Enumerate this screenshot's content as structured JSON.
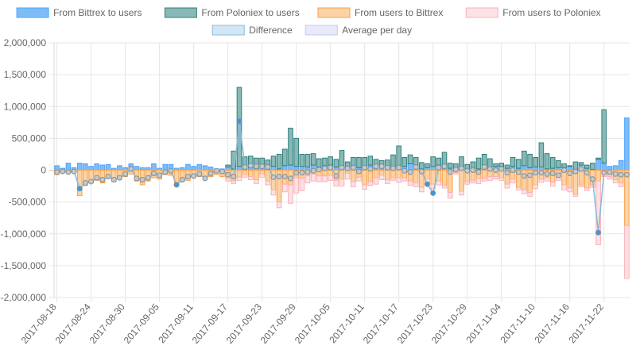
{
  "chart_data": {
    "type": "bar",
    "title": "",
    "xlabel": "",
    "ylabel": "",
    "ylim": [
      -2000000,
      2000000
    ],
    "y_ticks": [
      2000000,
      1500000,
      1000000,
      500000,
      0,
      -500000,
      -1000000,
      -1500000,
      -2000000
    ],
    "y_tick_labels": [
      "2,000,000",
      "1,500,000",
      "1,000,000",
      "500,000",
      "0",
      "-500,000",
      "-1,000,000",
      "-1,500,000",
      "-2,000,000"
    ],
    "x_tick_labels": [
      "2017-08-18",
      "2017-08-24",
      "2017-08-30",
      "2017-09-05",
      "2017-09-11",
      "2017-09-17",
      "2017-09-23",
      "2017-09-29",
      "2017-10-05",
      "2017-10-11",
      "2017-10-17",
      "2017-10-23",
      "2017-10-29",
      "2017-11-04",
      "2017-11-10",
      "2017-11-16",
      "2017-11-22"
    ],
    "x_tick_every": 6,
    "start_date": "2017-08-18",
    "legend": {
      "position": "top",
      "rows": [
        [
          0,
          1,
          2,
          3
        ],
        [
          4,
          5
        ]
      ]
    },
    "series": [
      {
        "name": "From Bittrex to users",
        "kind": "bar",
        "stack": "out",
        "color": "#4da3ff",
        "fill": "#7ebcf7",
        "values": [
          70000,
          30000,
          110000,
          40000,
          110000,
          100000,
          60000,
          100000,
          80000,
          90000,
          30000,
          70000,
          40000,
          100000,
          60000,
          40000,
          40000,
          100000,
          30000,
          90000,
          90000,
          30000,
          40000,
          90000,
          60000,
          90000,
          70000,
          50000,
          20000,
          20000,
          50000,
          20000,
          60000,
          20000,
          40000,
          30000,
          50000,
          20000,
          60000,
          20000,
          70000,
          80000,
          60000,
          60000,
          50000,
          80000,
          50000,
          70000,
          80000,
          50000,
          30000,
          40000,
          60000,
          40000,
          60000,
          80000,
          60000,
          50000,
          30000,
          50000,
          40000,
          60000,
          100000,
          70000,
          20000,
          40000,
          60000,
          80000,
          30000,
          30000,
          30000,
          40000,
          10000,
          30000,
          20000,
          80000,
          30000,
          60000,
          60000,
          30000,
          60000,
          30000,
          70000,
          40000,
          50000,
          50000,
          20000,
          30000,
          40000,
          40000,
          60000,
          10000,
          80000,
          30000,
          10000,
          170000,
          110000,
          60000,
          70000,
          150000,
          820000
        ]
      },
      {
        "name": "From Poloniex to users",
        "kind": "bar",
        "stack": "out",
        "color": "#2f7f7a",
        "fill": "#88b9b7",
        "values": [
          0,
          0,
          0,
          0,
          0,
          0,
          0,
          0,
          0,
          0,
          0,
          0,
          0,
          0,
          0,
          0,
          0,
          0,
          0,
          0,
          0,
          0,
          0,
          0,
          0,
          0,
          0,
          0,
          0,
          0,
          30000,
          280000,
          1240000,
          190000,
          180000,
          160000,
          140000,
          140000,
          160000,
          230000,
          260000,
          580000,
          440000,
          190000,
          200000,
          180000,
          130000,
          120000,
          130000,
          120000,
          280000,
          90000,
          140000,
          160000,
          140000,
          140000,
          110000,
          100000,
          130000,
          190000,
          340000,
          140000,
          140000,
          130000,
          100000,
          60000,
          150000,
          110000,
          250000,
          80000,
          70000,
          170000,
          80000,
          100000,
          170000,
          170000,
          150000,
          40000,
          50000,
          50000,
          140000,
          140000,
          230000,
          210000,
          150000,
          380000,
          240000,
          170000,
          110000,
          60000,
          10000,
          120000,
          40000,
          50000,
          100000,
          20000,
          840000
        ]
      },
      {
        "name": "From users to Bittrex",
        "kind": "bar",
        "stack": "in",
        "color": "#f6a24d",
        "fill": "#fcd3a5",
        "values": [
          -70000,
          -20000,
          -40000,
          -20000,
          -400000,
          -240000,
          -200000,
          -160000,
          -200000,
          -130000,
          -180000,
          -140000,
          -100000,
          -60000,
          -170000,
          -230000,
          -170000,
          -120000,
          -140000,
          -70000,
          -80000,
          -230000,
          -180000,
          -160000,
          -120000,
          -100000,
          -140000,
          -100000,
          -70000,
          -100000,
          -130000,
          -170000,
          -110000,
          -70000,
          -100000,
          -150000,
          -60000,
          -170000,
          -310000,
          -500000,
          -220000,
          -230000,
          -120000,
          -130000,
          -90000,
          -60000,
          -90000,
          -90000,
          -80000,
          -160000,
          -140000,
          -50000,
          -180000,
          -110000,
          -230000,
          -180000,
          -120000,
          -80000,
          -150000,
          -120000,
          -120000,
          -120000,
          -170000,
          -200000,
          -270000,
          -140000,
          -220000,
          -170000,
          -240000,
          -350000,
          -40000,
          -330000,
          -180000,
          -160000,
          -130000,
          -130000,
          -100000,
          -100000,
          -120000,
          -220000,
          -140000,
          -270000,
          -310000,
          -350000,
          -230000,
          -140000,
          -120000,
          -190000,
          -120000,
          -230000,
          -280000,
          -380000,
          -230000,
          -280000,
          -230000,
          -170000,
          -50000,
          -100000,
          -150000,
          -200000,
          -870000
        ]
      },
      {
        "name": "From users to Poloniex",
        "kind": "bar",
        "stack": "in",
        "color": "#f9b0b8",
        "fill": "#fde2e5",
        "values": [
          0,
          0,
          0,
          0,
          0,
          0,
          0,
          0,
          0,
          0,
          0,
          0,
          0,
          0,
          0,
          0,
          0,
          0,
          0,
          0,
          0,
          0,
          0,
          0,
          0,
          0,
          0,
          0,
          0,
          0,
          -40000,
          -40000,
          -50000,
          -40000,
          -50000,
          -60000,
          -50000,
          -60000,
          -80000,
          -90000,
          -120000,
          -290000,
          -240000,
          -190000,
          -110000,
          -110000,
          -90000,
          -90000,
          -80000,
          -90000,
          -110000,
          -90000,
          -80000,
          -60000,
          -70000,
          -60000,
          -100000,
          -70000,
          -60000,
          -40000,
          -70000,
          -50000,
          -70000,
          -60000,
          -70000,
          -80000,
          -70000,
          -60000,
          -40000,
          -90000,
          -20000,
          -60000,
          -40000,
          -40000,
          -80000,
          -40000,
          -60000,
          -40000,
          -40000,
          -60000,
          -60000,
          -40000,
          -60000,
          -60000,
          -60000,
          -50000,
          -50000,
          -60000,
          -40000,
          -80000,
          -60000,
          -30000,
          -30000,
          -40000,
          -40000,
          -1000000,
          -50000,
          -40000,
          -50000,
          -60000,
          -830000
        ]
      },
      {
        "name": "Difference",
        "kind": "line",
        "color": "#8ab8d8",
        "fill": "#d2e7f4",
        "values": [
          -30000,
          -20000,
          -30000,
          -20000,
          -290000,
          -200000,
          -180000,
          -120000,
          -150000,
          -100000,
          -150000,
          -120000,
          -60000,
          20000,
          -130000,
          -150000,
          -120000,
          -50000,
          -80000,
          -30000,
          -10000,
          -230000,
          -150000,
          -100000,
          -90000,
          -60000,
          -130000,
          -50000,
          -10000,
          -20000,
          -70000,
          -100000,
          770000,
          50000,
          70000,
          60000,
          60000,
          50000,
          -110000,
          -100000,
          -100000,
          -130000,
          -40000,
          -40000,
          -30000,
          -10000,
          10000,
          30000,
          40000,
          -90000,
          40000,
          30000,
          40000,
          -20000,
          40000,
          20000,
          60000,
          60000,
          40000,
          30000,
          40000,
          -10000,
          -30000,
          50000,
          -20000,
          -220000,
          -360000,
          40000,
          60000,
          -30000,
          10000,
          30000,
          -10000,
          0,
          -30000,
          50000,
          20000,
          0,
          20000,
          -40000,
          0,
          -30000,
          -90000,
          -80000,
          -40000,
          -40000,
          -60000,
          -50000,
          -80000,
          0,
          -50000,
          -20000,
          20000,
          -40000,
          -140000,
          -980000,
          -40000,
          -30000,
          -60000,
          -70000,
          -70000
        ]
      },
      {
        "name": "Average per day",
        "kind": "line",
        "color": "#c6c8f2",
        "fill": "#e8e9fa",
        "values": []
      }
    ]
  }
}
